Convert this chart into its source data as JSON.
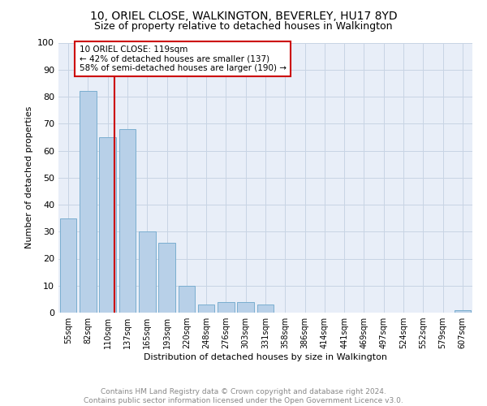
{
  "title1": "10, ORIEL CLOSE, WALKINGTON, BEVERLEY, HU17 8YD",
  "title2": "Size of property relative to detached houses in Walkington",
  "xlabel": "Distribution of detached houses by size in Walkington",
  "ylabel": "Number of detached properties",
  "bar_labels": [
    "55sqm",
    "82sqm",
    "110sqm",
    "137sqm",
    "165sqm",
    "193sqm",
    "220sqm",
    "248sqm",
    "276sqm",
    "303sqm",
    "331sqm",
    "358sqm",
    "386sqm",
    "414sqm",
    "441sqm",
    "469sqm",
    "497sqm",
    "524sqm",
    "552sqm",
    "579sqm",
    "607sqm"
  ],
  "bar_values": [
    35,
    82,
    65,
    68,
    30,
    26,
    10,
    3,
    4,
    4,
    3,
    0,
    0,
    0,
    0,
    0,
    0,
    0,
    0,
    0,
    1
  ],
  "bar_color": "#b8d0e8",
  "bar_edge_color": "#7aaed0",
  "annotation_line_label": "10 ORIEL CLOSE: 119sqm",
  "annotation_text1": "← 42% of detached houses are smaller (137)",
  "annotation_text2": "58% of semi-detached houses are larger (190) →",
  "annotation_box_color": "white",
  "annotation_box_edge_color": "#cc0000",
  "vline_color": "#cc0000",
  "footer_text": "Contains HM Land Registry data © Crown copyright and database right 2024.\nContains public sector information licensed under the Open Government Licence v3.0.",
  "ylim": [
    0,
    100
  ],
  "grid_color": "#c8d4e4",
  "background_color": "#e8eef8"
}
